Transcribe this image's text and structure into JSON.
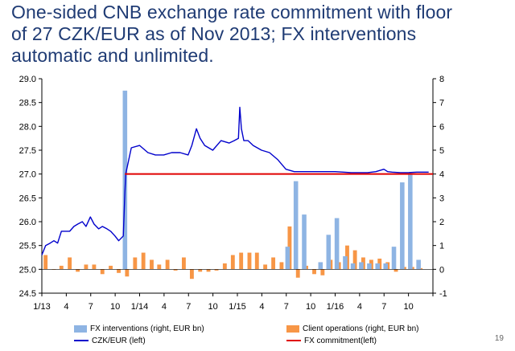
{
  "title_lines": [
    "One-sided CNB exchange rate commitment with floor",
    "of 27 CZK/EUR as of Nov 2013; FX interventions",
    "automatic and unlimited."
  ],
  "page_number": "19",
  "colors": {
    "title": "#1f3b74",
    "fx_interventions": "#8eb4e3",
    "client_operations": "#f79646",
    "czk_eur": "#0000cc",
    "commitment": "#e00000"
  },
  "chart_data": {
    "type": "bar",
    "x_tick_labels": [
      "1/13",
      "4",
      "7",
      "10",
      "1/14",
      "4",
      "7",
      "10",
      "1/15",
      "4",
      "7",
      "10",
      "1/16",
      "4",
      "7",
      "10"
    ],
    "x_range": [
      "2013-01",
      "2016-12"
    ],
    "y_left": {
      "min": 24.5,
      "max": 29.0,
      "step": 0.5,
      "tick_labels": [
        "24.5",
        "25.0",
        "25.5",
        "26.0",
        "26.5",
        "27.0",
        "27.5",
        "28.0",
        "28.5",
        "29.0"
      ]
    },
    "y_right": {
      "min": -1,
      "max": 8,
      "step": 1,
      "tick_labels": [
        "-1",
        "0",
        "1",
        "2",
        "3",
        "4",
        "5",
        "6",
        "7",
        "8"
      ]
    },
    "legend": {
      "fx_interventions": "FX interventions (right, EUR bn)",
      "client_operations": "Client operations (right, EUR bn)",
      "czk_eur": "CZK/EUR (left)",
      "commitment": "FX commitment(left)"
    },
    "series": [
      {
        "name": "FX interventions (right, EUR bn)",
        "axis": "right",
        "kind": "bar",
        "months": [
          "2013-11",
          "2015-07",
          "2015-08",
          "2015-09",
          "2015-11",
          "2015-12",
          "2016-01",
          "2016-02",
          "2016-03",
          "2016-04",
          "2016-05",
          "2016-06",
          "2016-07",
          "2016-08",
          "2016-09",
          "2016-10",
          "2016-11"
        ],
        "values": [
          7.5,
          0.95,
          3.7,
          2.3,
          0.3,
          1.45,
          2.15,
          0.55,
          0.25,
          0.3,
          0.25,
          0.25,
          0.25,
          0.95,
          3.65,
          4.0,
          0.4
        ]
      },
      {
        "name": "Client operations (right, EUR bn)",
        "axis": "right",
        "kind": "bar",
        "months": [
          "2013-01",
          "2013-02",
          "2013-03",
          "2013-04",
          "2013-05",
          "2013-06",
          "2013-07",
          "2013-08",
          "2013-09",
          "2013-10",
          "2013-11",
          "2013-12",
          "2014-01",
          "2014-02",
          "2014-03",
          "2014-04",
          "2014-05",
          "2014-06",
          "2014-07",
          "2014-08",
          "2014-09",
          "2014-10",
          "2014-11",
          "2014-12",
          "2015-01",
          "2015-02",
          "2015-03",
          "2015-04",
          "2015-05",
          "2015-06",
          "2015-07",
          "2015-08",
          "2015-09",
          "2015-10",
          "2015-11",
          "2015-12",
          "2016-01",
          "2016-02",
          "2016-03",
          "2016-04",
          "2016-05",
          "2016-06",
          "2016-07",
          "2016-08",
          "2016-09",
          "2016-10",
          "2016-11"
        ],
        "values": [
          0.6,
          0.0,
          0.15,
          0.5,
          -0.1,
          0.2,
          0.2,
          -0.2,
          0.15,
          -0.15,
          -0.3,
          0.5,
          0.7,
          0.4,
          0.2,
          0.4,
          -0.05,
          0.5,
          -0.4,
          -0.1,
          -0.1,
          -0.05,
          0.25,
          0.6,
          0.7,
          0.7,
          0.7,
          0.2,
          0.5,
          0.3,
          1.8,
          -0.35,
          0.15,
          -0.2,
          -0.25,
          0.4,
          0.3,
          1.0,
          0.8,
          0.5,
          0.4,
          0.45,
          0.3,
          -0.1,
          0.1,
          0.1,
          0.05
        ]
      },
      {
        "name": "CZK/EUR (left)",
        "axis": "left",
        "kind": "line",
        "dates": [
          "2013-01-01",
          "2013-01-15",
          "2013-02-01",
          "2013-02-15",
          "2013-03-01",
          "2013-03-15",
          "2013-04-01",
          "2013-04-15",
          "2013-05-01",
          "2013-05-15",
          "2013-06-01",
          "2013-06-15",
          "2013-07-01",
          "2013-07-15",
          "2013-08-01",
          "2013-08-15",
          "2013-09-01",
          "2013-09-15",
          "2013-10-01",
          "2013-10-15",
          "2013-11-01",
          "2013-11-07",
          "2013-11-10",
          "2013-12-01",
          "2014-01-01",
          "2014-02-01",
          "2014-03-01",
          "2014-04-01",
          "2014-05-01",
          "2014-06-01",
          "2014-07-01",
          "2014-07-15",
          "2014-08-01",
          "2014-08-15",
          "2014-09-01",
          "2014-10-01",
          "2014-11-01",
          "2014-12-01",
          "2014-12-20",
          "2015-01-05",
          "2015-01-10",
          "2015-01-16",
          "2015-01-25",
          "2015-02-10",
          "2015-03-01",
          "2015-04-01",
          "2015-05-01",
          "2015-06-01",
          "2015-07-01",
          "2015-08-01",
          "2015-09-01",
          "2015-10-01",
          "2015-11-01",
          "2015-12-01",
          "2016-01-01",
          "2016-02-01",
          "2016-03-01",
          "2016-04-01",
          "2016-05-01",
          "2016-06-01",
          "2016-07-01",
          "2016-07-15",
          "2016-08-01",
          "2016-09-01",
          "2016-10-01",
          "2016-11-01",
          "2016-12-15"
        ],
        "values": [
          25.3,
          25.5,
          25.55,
          25.6,
          25.55,
          25.8,
          25.8,
          25.8,
          25.9,
          25.95,
          26.0,
          25.9,
          26.1,
          25.95,
          25.85,
          25.9,
          25.85,
          25.8,
          25.7,
          25.6,
          25.7,
          26.6,
          27.0,
          27.55,
          27.6,
          27.45,
          27.4,
          27.4,
          27.45,
          27.45,
          27.4,
          27.6,
          27.95,
          27.75,
          27.6,
          27.5,
          27.7,
          27.65,
          27.7,
          27.75,
          28.4,
          27.95,
          27.7,
          27.7,
          27.6,
          27.5,
          27.45,
          27.3,
          27.1,
          27.05,
          27.05,
          27.05,
          27.05,
          27.05,
          27.05,
          27.04,
          27.03,
          27.03,
          27.03,
          27.05,
          27.1,
          27.05,
          27.04,
          27.03,
          27.03,
          27.04,
          27.04
        ]
      },
      {
        "name": "FX commitment(left)",
        "axis": "left",
        "kind": "line",
        "dates": [
          "2013-11-07",
          "2016-12-31"
        ],
        "values": [
          27.0,
          27.0
        ]
      }
    ]
  }
}
